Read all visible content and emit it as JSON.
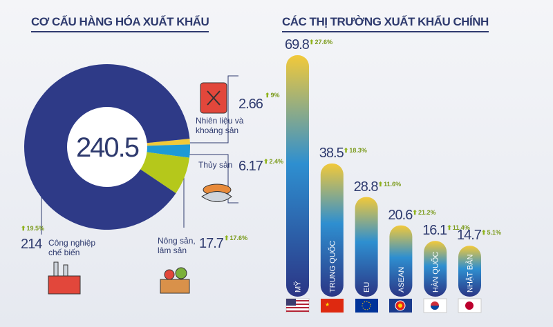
{
  "chart_data": [
    {
      "type": "donut",
      "title": "CƠ CẤU HÀNG HÓA XUẤT KHẨU",
      "total": 240.5,
      "categories": [
        "Nhiên liệu và khoáng sản",
        "Thủy sản",
        "Nông sản, lâm sản",
        "Công nghiệp chế biến"
      ],
      "values": [
        2.66,
        6.17,
        17.7,
        214
      ],
      "growth_labels": [
        "9%",
        "2.4%",
        "17.6%",
        "19.5%"
      ],
      "colors": [
        "#f0c93a",
        "#1e9ad6",
        "#b5c81b",
        "#2e3a87"
      ]
    },
    {
      "type": "bar",
      "title": "CÁC THỊ TRƯỜNG XUẤT KHẨU CHÍNH",
      "categories": [
        "MỸ",
        "TRUNG QUỐC",
        "EU",
        "ASEAN",
        "HÀN QUỐC",
        "NHẬT BẢN"
      ],
      "values": [
        69.8,
        38.5,
        28.8,
        20.6,
        16.1,
        14.7
      ],
      "growth_labels": [
        "27.6%",
        "18.3%",
        "11.6%",
        "21.2%",
        "11.4%",
        "5.1%"
      ]
    }
  ]
}
